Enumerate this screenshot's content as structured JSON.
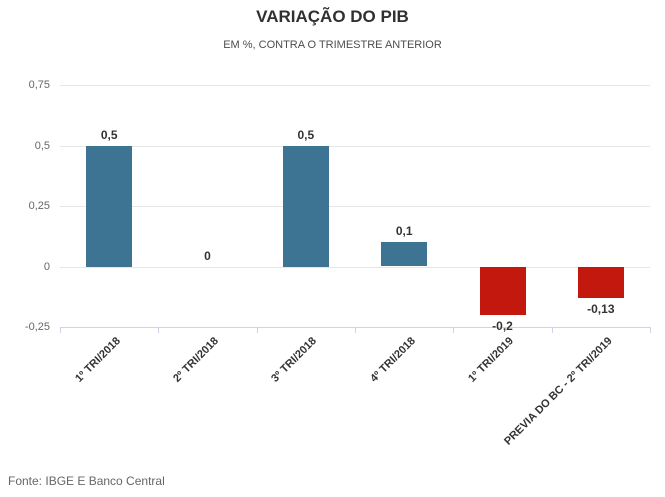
{
  "header": {
    "title": "VARIAÇÃO DO PIB",
    "subtitle": "EM %, CONTRA O TRIMESTRE ANTERIOR"
  },
  "footer": {
    "source": "Fonte: IBGE E Banco Central"
  },
  "chart_data": {
    "type": "bar",
    "title": "VARIAÇÃO DO PIB",
    "subtitle": "EM %, CONTRA O TRIMESTRE ANTERIOR",
    "categories": [
      "1º TRI/2018",
      "2º TRI/2018",
      "3º TRI/2018",
      "4º TRI/2018",
      "1º TRI/2019",
      "PREVIA DO BC - 2º TRI/2019"
    ],
    "values": [
      0.5,
      0,
      0.5,
      0.1,
      -0.2,
      -0.13
    ],
    "value_labels": [
      "0,5",
      "0",
      "0,5",
      "0,1",
      "-0,2",
      "-0,13"
    ],
    "xlabel": "",
    "ylabel": "",
    "ylim": [
      -0.25,
      0.75
    ],
    "y_ticks": [
      0.75,
      0.5,
      0.25,
      0,
      -0.25
    ],
    "y_tick_labels": [
      "0,75",
      "0,5",
      "0,25",
      "0",
      "-0,25"
    ],
    "grid": true,
    "legend": false,
    "colors": {
      "positive_bar": "#3d7493",
      "negative_bar": "#c2180d",
      "gridline": "#e6e6e6",
      "axis_line": "#ccd6eb",
      "title_text": "#303030",
      "subtitle_text": "#4d4d4d",
      "tick_text": "#666666",
      "data_label_text": "#333333"
    },
    "source": "Fonte: IBGE E Banco Central"
  }
}
